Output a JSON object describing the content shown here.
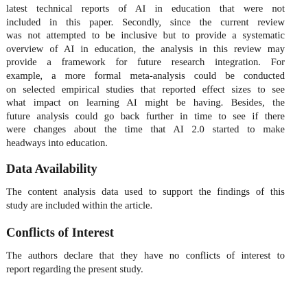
{
  "body": {
    "intro_lines": [
      "latest technical reports of AI in education that were not",
      "included in this paper. Secondly, since the current review",
      "was not attempted to be inclusive but to provide a systematic",
      "overview of AI in education, the analysis in this review may",
      "provide a framework for future research integration. For",
      "example, a more formal meta-analysis could be conducted",
      "on selected empirical studies that reported effect sizes to see",
      "what impact on learning AI might be having. Besides, the",
      "future analysis could go back further in time to see if there",
      "were changes about the time that AI 2.0 started to make",
      "headways into education."
    ]
  },
  "data_availability": {
    "heading": "Data Availability",
    "lines": [
      "The content analysis data used to support the findings of this",
      "study are included within the article."
    ]
  },
  "conflicts": {
    "heading": "Conflicts of Interest",
    "lines": [
      "The authors declare that they have no conflicts of interest to",
      "report regarding the present study."
    ]
  }
}
